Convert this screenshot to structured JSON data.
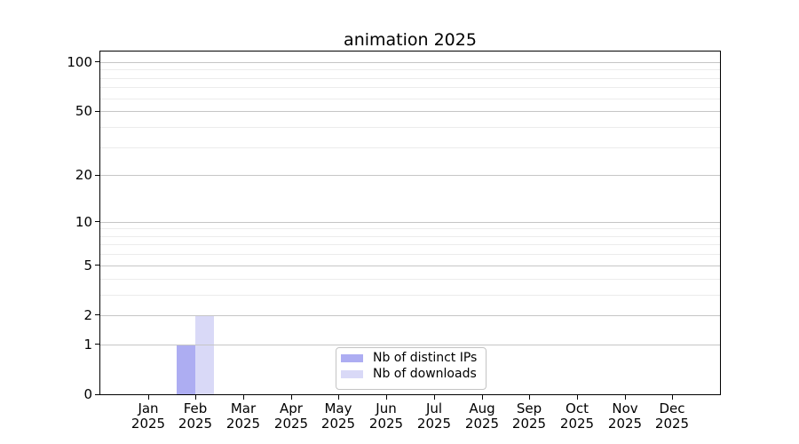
{
  "chart_data": {
    "type": "bar",
    "title": "animation 2025",
    "x_categories": [
      "Jan\n2025",
      "Feb\n2025",
      "Mar\n2025",
      "Apr\n2025",
      "May\n2025",
      "Jun\n2025",
      "Jul\n2025",
      "Aug\n2025",
      "Sep\n2025",
      "Oct\n2025",
      "Nov\n2025",
      "Dec\n2025"
    ],
    "series": [
      {
        "id": "distinct-ips",
        "name": "Nb of distinct IPs",
        "color": "#adadf2",
        "values": [
          0,
          1,
          0,
          0,
          0,
          0,
          0,
          0,
          0,
          0,
          0,
          0
        ]
      },
      {
        "id": "downloads",
        "name": "Nb of downloads",
        "color": "#d9d9f7",
        "values": [
          0,
          2,
          0,
          0,
          0,
          0,
          0,
          0,
          0,
          0,
          0,
          0
        ]
      }
    ],
    "y_scale": "log1p",
    "y_ticks": [
      0,
      1,
      2,
      5,
      10,
      20,
      50,
      100
    ],
    "y_minor_gridlines": [
      3,
      4,
      6,
      7,
      8,
      9,
      30,
      40,
      60,
      70,
      80,
      90
    ],
    "ylim": [
      0,
      116
    ],
    "grid": true,
    "legend_position": "lower center",
    "colors": {
      "major_grid": "#c6c6c6",
      "minor_grid": "#ececec",
      "spine": "#000000",
      "background": "#ffffff",
      "legend_border": "#c4c4c4",
      "text": "#000000"
    }
  }
}
